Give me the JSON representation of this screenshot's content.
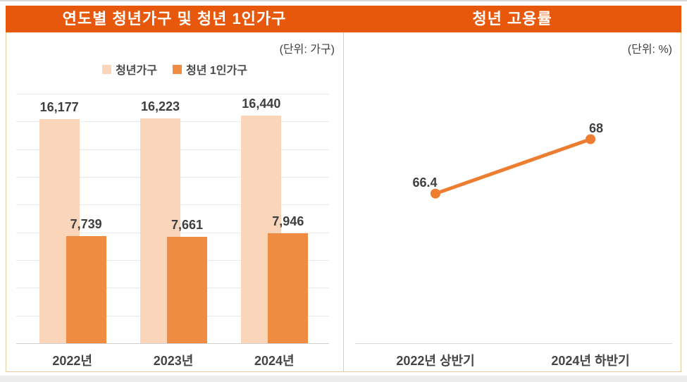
{
  "header": {
    "left_title": "연도별 청년가구 및 청년 1인가구",
    "right_title": "청년 고용률"
  },
  "left_panel": {
    "unit_label": "(단위: 가구)"
  },
  "right_panel": {
    "unit_label": "(단위: %)"
  },
  "colors": {
    "header_bg": "#e8580c",
    "panel_border": "#e9c9a0",
    "series_light": "#fad5ba",
    "series_orange": "#f08b42",
    "line": "#ed7d31",
    "gridline": "#e9e9e9",
    "axis_line": "#cfcfcf",
    "text_dark": "#3f3f3f",
    "title_text": "#ffffff"
  },
  "chart_data": [
    {
      "type": "bar",
      "title": "연도별 청년가구 및 청년 1인가구",
      "unit": "가구",
      "categories": [
        "2022년",
        "2023년",
        "2024년"
      ],
      "series": [
        {
          "name": "청년가구",
          "color": "#fad5ba",
          "values": [
            16177,
            16223,
            16440
          ],
          "labels": [
            "16,177",
            "16,223",
            "16,440"
          ]
        },
        {
          "name": "청년 1인가구",
          "color": "#f08b42",
          "values": [
            7739,
            7661,
            7946
          ],
          "labels": [
            "7,739",
            "7,661",
            "7,946"
          ]
        }
      ],
      "ylim": [
        0,
        18000
      ],
      "grid_step": 2000,
      "grid": true,
      "legend_position": "top",
      "bar_style": "overlapped"
    },
    {
      "type": "line",
      "title": "청년 고용률",
      "unit": "%",
      "categories": [
        "2022년 상반기",
        "2024년 하반기"
      ],
      "values": [
        66.4,
        68
      ],
      "labels": [
        "66.4",
        "68"
      ],
      "ylim": [
        62,
        70
      ],
      "grid": false,
      "line_color": "#ed7d31",
      "marker": "circle"
    }
  ]
}
